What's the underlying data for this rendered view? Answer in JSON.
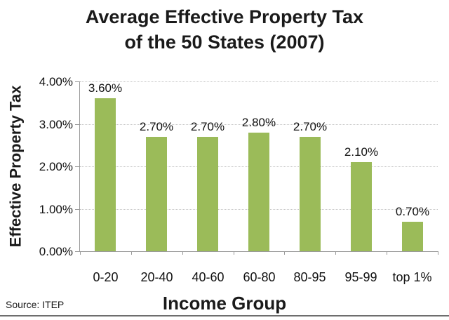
{
  "title": {
    "line1": "Average Effective Property Tax",
    "line2": "of the 50 States (2007)"
  },
  "chart_data": {
    "type": "bar",
    "title": "Average Effective Property Tax of the 50 States (2007)",
    "categories": [
      "0-20",
      "20-40",
      "40-60",
      "60-80",
      "80-95",
      "95-99",
      "top 1%"
    ],
    "values": [
      3.6,
      2.7,
      2.7,
      2.8,
      2.7,
      2.1,
      0.7
    ],
    "data_labels": [
      "3.60%",
      "2.70%",
      "2.70%",
      "2.80%",
      "2.70%",
      "2.10%",
      "0.70%"
    ],
    "xlabel": "Income Group",
    "ylabel": "Effective Property Tax",
    "y_ticks": [
      "4.00%",
      "3.00%",
      "2.00%",
      "1.00%",
      "0.00%"
    ],
    "ylim": [
      0,
      4
    ],
    "grid": "horizontal-dotted",
    "legend": "none",
    "source": "Source: ITEP",
    "colors": {
      "bar": "#9BBB59",
      "axis": "#9a9a9a",
      "gridline": "#c6c6c6",
      "text": "#111111",
      "bottom_rule": "#6e6e6e"
    }
  }
}
